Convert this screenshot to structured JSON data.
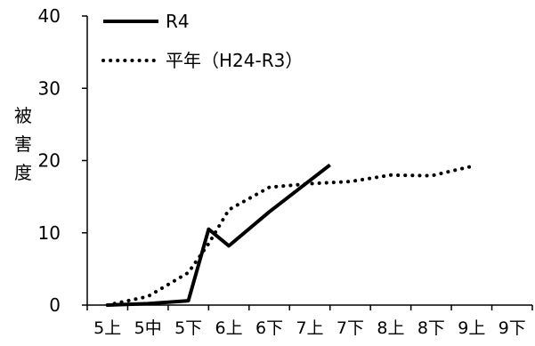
{
  "chart_data": {
    "type": "line",
    "title": "",
    "xlabel": "",
    "ylabel": "被害度",
    "ylim": [
      0,
      40
    ],
    "yticks": [
      0,
      10,
      20,
      30,
      40
    ],
    "categories": [
      "5上",
      "5中",
      "5下",
      "6上",
      "6下",
      "7上",
      "7下",
      "8上",
      "8下",
      "9上",
      "9下"
    ],
    "grid": false,
    "legend_position": "top-left",
    "series": [
      {
        "name": "R4",
        "style": "solid",
        "color": "#000000",
        "points": [
          [
            0,
            0
          ],
          [
            1,
            0.2
          ],
          [
            2,
            0.6
          ],
          [
            2.5,
            10.5
          ],
          [
            3,
            8.2
          ],
          [
            4,
            12.9
          ],
          [
            5.5,
            19.4
          ]
        ]
      },
      {
        "name": "平年（H24-R3）",
        "style": "dotted",
        "color": "#000000",
        "points": [
          [
            0,
            0
          ],
          [
            1,
            1.2
          ],
          [
            2,
            4.5
          ],
          [
            2.5,
            8.5
          ],
          [
            3,
            13.2
          ],
          [
            4,
            16.3
          ],
          [
            5,
            16.8
          ],
          [
            6,
            17.1
          ],
          [
            7,
            18.0
          ],
          [
            8,
            17.9
          ],
          [
            9,
            19.2
          ]
        ]
      }
    ]
  }
}
